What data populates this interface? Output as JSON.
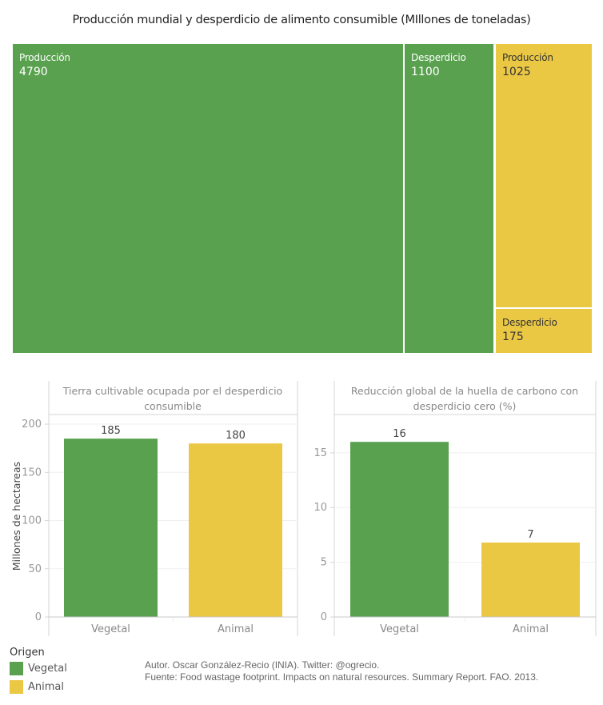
{
  "colors": {
    "vegetal": "#59a14f",
    "animal": "#ebc844"
  },
  "main_title": "Producción mundial y desperdicio de alimento consumible (MIllones de toneladas)",
  "chart_data": [
    {
      "type": "treemap",
      "title": "Producción mundial y desperdicio de alimento consumible (MIllones de toneladas)",
      "units": "Millones de toneladas",
      "tiles": [
        {
          "origin": "Vegetal",
          "label": "Producción",
          "value": 4790
        },
        {
          "origin": "Vegetal",
          "label": "Desperdicio",
          "value": 1100
        },
        {
          "origin": "Animal",
          "label": "Producción",
          "value": 1025
        },
        {
          "origin": "Animal",
          "label": "Desperdicio",
          "value": 175
        }
      ]
    },
    {
      "type": "bar",
      "title": "Tierra cultivable ocupada por el desperdicio consumible",
      "ylabel": "Millones de hectareas",
      "xlabel": "",
      "categories": [
        "Vegetal",
        "Animal"
      ],
      "values": [
        185,
        180
      ],
      "data_labels": [
        "185",
        "180"
      ],
      "ylim": [
        0,
        210
      ],
      "yticks": [
        0,
        50,
        100,
        150,
        200
      ],
      "grid": true
    },
    {
      "type": "bar",
      "title": "Reducción global de la huella de carbono con desperdicio cero (%)",
      "ylabel": "",
      "xlabel": "",
      "categories": [
        "Vegetal",
        "Animal"
      ],
      "values": [
        16,
        6.8
      ],
      "data_labels": [
        "16",
        "7"
      ],
      "ylim": [
        0,
        18.5
      ],
      "yticks": [
        0,
        5,
        10,
        15
      ],
      "grid": true
    }
  ],
  "legend": {
    "title": "Origen",
    "placement": "bottom-left",
    "items": [
      {
        "label": "Vegetal",
        "key": "vegetal"
      },
      {
        "label": "Animal",
        "key": "animal"
      }
    ]
  },
  "credits": {
    "author": "Autor. Oscar González-Recio (INIA). Twitter: @ogrecio.",
    "source": "Fuente: Food wastage footprint. Impacts on natural resources. Summary Report. FAO. 2013."
  }
}
